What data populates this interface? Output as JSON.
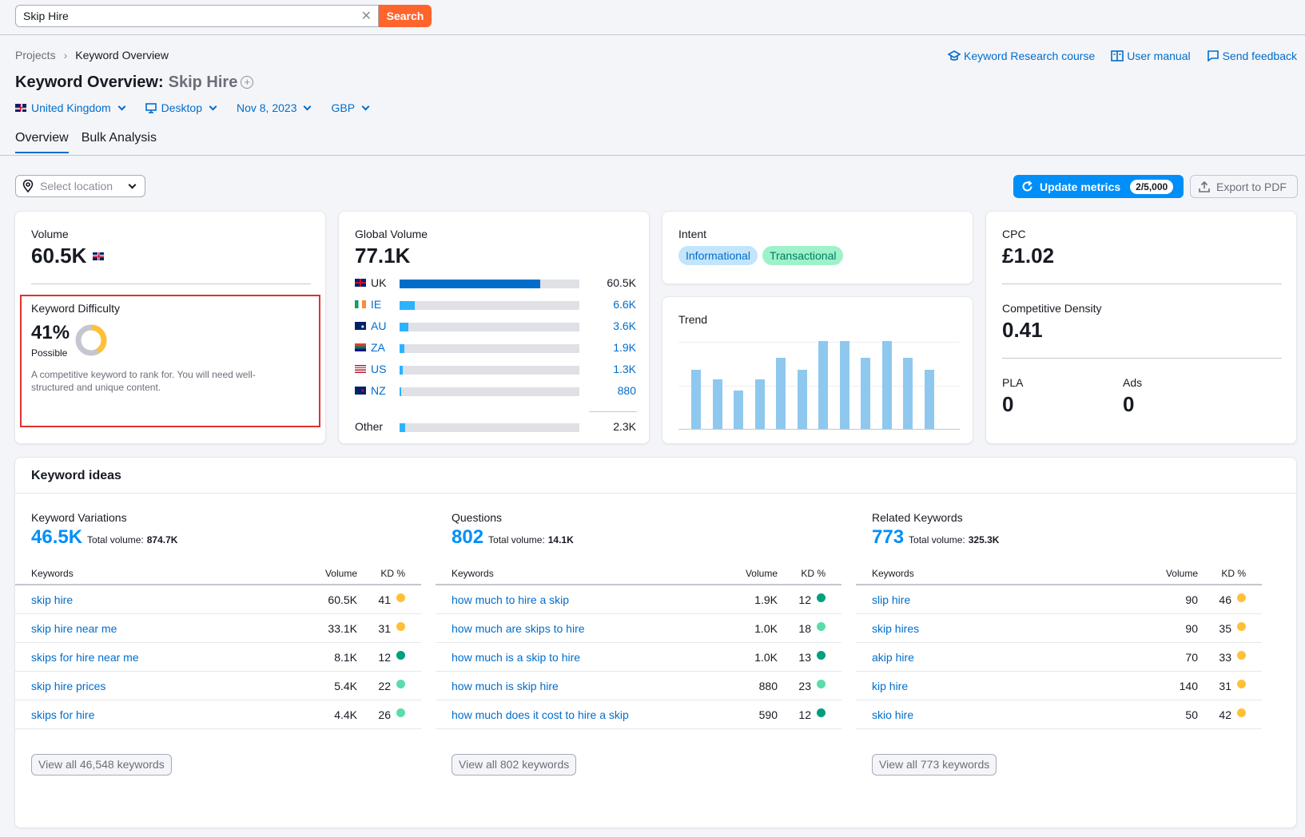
{
  "search": {
    "value": "Skip Hire",
    "button": "Search"
  },
  "breadcrumb": {
    "parent": "Projects",
    "current": "Keyword Overview"
  },
  "header_links": {
    "course": "Keyword Research course",
    "manual": "User manual",
    "feedback": "Send feedback"
  },
  "title": {
    "prefix": "Keyword Overview:",
    "keyword": "Skip Hire"
  },
  "filters": {
    "country": "United Kingdom",
    "device": "Desktop",
    "date": "Nov 8, 2023",
    "currency": "GBP"
  },
  "tabs": [
    "Overview",
    "Bulk Analysis"
  ],
  "location": {
    "placeholder": "Select location"
  },
  "update": {
    "label": "Update metrics",
    "badge": "2/5,000"
  },
  "export": {
    "label": "Export to PDF"
  },
  "volume": {
    "label": "Volume",
    "value": "60.5K"
  },
  "kd": {
    "label": "Keyword Difficulty",
    "value": "41%",
    "level": "Possible",
    "percent": 41,
    "description": "A competitive keyword to rank for. You will need well-structured and unique content."
  },
  "global_volume": {
    "label": "Global Volume",
    "value": "77.1K",
    "rows": [
      {
        "country": "UK",
        "value": "60.5K",
        "share": 0.78
      },
      {
        "country": "IE",
        "value": "6.6K",
        "share": 0.085
      },
      {
        "country": "AU",
        "value": "3.6K",
        "share": 0.047
      },
      {
        "country": "ZA",
        "value": "1.9K",
        "share": 0.025
      },
      {
        "country": "US",
        "value": "1.3K",
        "share": 0.017
      },
      {
        "country": "NZ",
        "value": "880",
        "share": 0.011
      }
    ],
    "other": {
      "label": "Other",
      "value": "2.3K",
      "share": 0.03
    }
  },
  "intent": {
    "label": "Intent",
    "tags": [
      "Informational",
      "Transactional"
    ]
  },
  "trend": {
    "label": "Trend",
    "values": [
      0.67,
      0.56,
      0.44,
      0.56,
      0.81,
      0.67,
      1.0,
      1.0,
      0.81,
      1.0,
      0.81,
      0.67
    ]
  },
  "cpc": {
    "label": "CPC",
    "value": "£1.02"
  },
  "comp_density": {
    "label": "Competitive Density",
    "value": "0.41"
  },
  "pla": {
    "label": "PLA",
    "value": "0"
  },
  "ads": {
    "label": "Ads",
    "value": "0"
  },
  "keyword_ideas": {
    "title": "Keyword ideas",
    "total_label": "Total volume:",
    "headers": {
      "keywords": "Keywords",
      "volume": "Volume",
      "kd": "KD %"
    },
    "columns": [
      {
        "title": "Keyword Variations",
        "count": "46.5K",
        "total": "874.7K",
        "rows": [
          {
            "kw": "skip hire",
            "vol": "60.5K",
            "kd": "41",
            "color": "#ffc037"
          },
          {
            "kw": "skip hire near me",
            "vol": "33.1K",
            "kd": "31",
            "color": "#ffc037"
          },
          {
            "kw": "skips for hire near me",
            "vol": "8.1K",
            "kd": "12",
            "color": "#009f81"
          },
          {
            "kw": "skip hire prices",
            "vol": "5.4K",
            "kd": "22",
            "color": "#59ddaa"
          },
          {
            "kw": "skips for hire",
            "vol": "4.4K",
            "kd": "26",
            "color": "#59ddaa"
          }
        ],
        "view_all": "View all 46,548 keywords"
      },
      {
        "title": "Questions",
        "count": "802",
        "total": "14.1K",
        "rows": [
          {
            "kw": "how much to hire a skip",
            "vol": "1.9K",
            "kd": "12",
            "color": "#009f81"
          },
          {
            "kw": "how much are skips to hire",
            "vol": "1.0K",
            "kd": "18",
            "color": "#59ddaa"
          },
          {
            "kw": "how much is a skip to hire",
            "vol": "1.0K",
            "kd": "13",
            "color": "#009f81"
          },
          {
            "kw": "how much is skip hire",
            "vol": "880",
            "kd": "23",
            "color": "#59ddaa"
          },
          {
            "kw": "how much does it cost to hire a skip",
            "vol": "590",
            "kd": "12",
            "color": "#009f81"
          }
        ],
        "view_all": "View all 802 keywords"
      },
      {
        "title": "Related Keywords",
        "count": "773",
        "total": "325.3K",
        "rows": [
          {
            "kw": "slip hire",
            "vol": "90",
            "kd": "46",
            "color": "#ffc037"
          },
          {
            "kw": "skip hires",
            "vol": "90",
            "kd": "35",
            "color": "#ffc037"
          },
          {
            "kw": "akip hire",
            "vol": "70",
            "kd": "33",
            "color": "#ffc037"
          },
          {
            "kw": "kip hire",
            "vol": "140",
            "kd": "31",
            "color": "#ffc037"
          },
          {
            "kw": "skio hire",
            "vol": "50",
            "kd": "42",
            "color": "#ffc037"
          }
        ],
        "view_all": "View all 773 keywords"
      }
    ]
  }
}
